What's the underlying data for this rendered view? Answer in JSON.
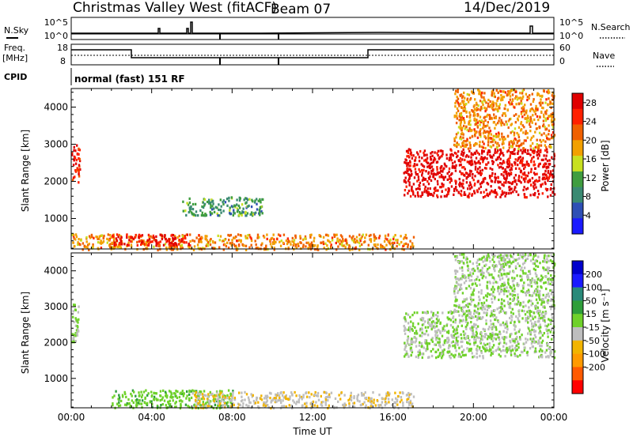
{
  "header": {
    "radar": "Christmas Valley West (fitACF)",
    "beam": "Beam 07",
    "date": "14/Dec/2019"
  },
  "params": {
    "nsky_label": "N.Sky",
    "nsky_top": "10^5",
    "nsky_bottom": "10^0",
    "nsearch_top": "10^5",
    "nsearch_bottom": "10^0",
    "nsearch_label": "N.Search",
    "freq_label_line1": "Freq.",
    "freq_label_line2": "[MHz]",
    "freq_top": "18",
    "freq_bottom": "8",
    "nave_top": "60",
    "nave_bottom": "0",
    "nave_label": "Nave",
    "cpid_label": "CPID",
    "cpid_text": "normal (fast) 151 RF"
  },
  "colors": {
    "power_scale": [
      "#1a1aff",
      "#2e4fb5",
      "#3a8a72",
      "#3f9d3f",
      "#c8e020",
      "#f2a000",
      "#f06000",
      "#ff2000",
      "#e00000"
    ],
    "velocity_scale": [
      "#ff0000",
      "#ff5a00",
      "#ff9a00",
      "#f2b400",
      "#bebebe",
      "#6fd12a",
      "#2e9e3a",
      "#2a8a7a",
      "#1a1aff",
      "#0000cc"
    ]
  },
  "chart_data": [
    {
      "type": "heatmap",
      "title": "Power",
      "xlabel": "",
      "ylabel": "Slant Range [km]",
      "xlim": [
        "00:00",
        "00:00"
      ],
      "xticks": [
        "00:00",
        "04:00",
        "08:00",
        "12:00",
        "16:00",
        "20:00",
        "00:00"
      ],
      "ylim": [
        180,
        4500
      ],
      "yticks": [
        1000,
        2000,
        3000,
        4000
      ],
      "colorbar": {
        "label": "Power [dB]",
        "ticks": [
          4,
          8,
          12,
          16,
          20,
          24,
          28
        ],
        "range": [
          0,
          30
        ]
      },
      "regions": [
        {
          "t_start": 0.0,
          "t_end": 0.4,
          "r_start": 2000,
          "r_end": 3100,
          "value": 26
        },
        {
          "t_start": 0.0,
          "t_end": 17.0,
          "r_start": 180,
          "r_end": 600,
          "value": 20
        },
        {
          "t_start": 2.0,
          "t_end": 6.0,
          "r_start": 300,
          "r_end": 600,
          "value": 27
        },
        {
          "t_start": 5.5,
          "t_end": 9.5,
          "r_start": 1100,
          "r_end": 1600,
          "value": 10
        },
        {
          "t_start": 16.5,
          "t_end": 24.0,
          "r_start": 1600,
          "r_end": 2900,
          "value": 29
        },
        {
          "t_start": 19.0,
          "t_end": 24.0,
          "r_start": 2900,
          "r_end": 4500,
          "value": 20
        }
      ]
    },
    {
      "type": "heatmap",
      "title": "Velocity",
      "xlabel": "Time UT",
      "ylabel": "Slant Range [km]",
      "xlim": [
        "00:00",
        "00:00"
      ],
      "xticks": [
        "00:00",
        "04:00",
        "08:00",
        "12:00",
        "16:00",
        "20:00",
        "00:00"
      ],
      "ylim": [
        180,
        4500
      ],
      "yticks": [
        1000,
        2000,
        3000,
        4000
      ],
      "colorbar": {
        "label": "Velocity [m s⁻¹]",
        "ticks": [
          200,
          100,
          50,
          15,
          -15,
          -50,
          -100,
          -200
        ],
        "range": [
          -250,
          250
        ]
      },
      "regions": [
        {
          "t_start": 0.0,
          "t_end": 0.4,
          "r_start": 2000,
          "r_end": 3100,
          "value": 0
        },
        {
          "t_start": 2.0,
          "t_end": 8.0,
          "r_start": 200,
          "r_end": 700,
          "value": 30
        },
        {
          "t_start": 6.0,
          "t_end": 17.0,
          "r_start": 200,
          "r_end": 650,
          "value": -40
        },
        {
          "t_start": 16.5,
          "t_end": 24.0,
          "r_start": 1600,
          "r_end": 2900,
          "value": 0
        },
        {
          "t_start": 19.0,
          "t_end": 24.0,
          "r_start": 2900,
          "r_end": 4500,
          "value": 0
        }
      ]
    }
  ]
}
